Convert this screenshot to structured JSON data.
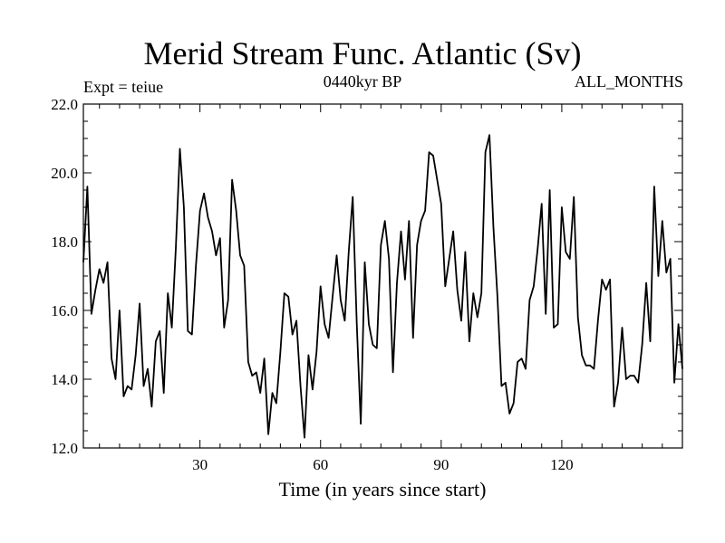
{
  "chart_data": {
    "type": "line",
    "title": "Merid Stream Func. Atlantic (Sv)",
    "subtitle_left": "Expt = teiue",
    "subtitle_center": "0440kyr BP",
    "subtitle_right": "ALL_MONTHS",
    "xlabel": "Time (in years since start)",
    "ylabel": "",
    "xlim": [
      1,
      150
    ],
    "ylim": [
      12.0,
      22.0
    ],
    "x_ticks": [
      30,
      60,
      90,
      120
    ],
    "x_tick_labels": [
      "30",
      "60",
      "90",
      "120"
    ],
    "y_ticks": [
      12,
      14,
      16,
      18,
      20,
      22
    ],
    "y_tick_labels": [
      "12.0",
      "14.0",
      "16.0",
      "18.0",
      "20.0",
      "22.0"
    ],
    "grid": false,
    "line_color": "#000000",
    "series": [
      {
        "x": [
          1,
          2,
          3,
          4,
          5,
          6,
          7,
          8,
          9,
          10,
          11,
          12,
          13,
          14,
          15,
          16,
          17,
          18,
          19,
          20,
          21,
          22,
          23,
          24,
          25,
          26,
          27,
          28,
          29,
          30,
          31,
          32,
          33,
          34,
          35,
          36,
          37,
          38,
          39,
          40,
          41,
          42,
          43,
          44,
          45,
          46,
          47,
          48,
          49,
          50,
          51,
          52,
          53,
          54,
          55,
          56,
          57,
          58,
          59,
          60,
          61,
          62,
          63,
          64,
          65,
          66,
          67,
          68,
          69,
          70,
          71,
          72,
          73,
          74,
          75,
          76,
          77,
          78,
          79,
          80,
          81,
          82,
          83,
          84,
          85,
          86,
          87,
          88,
          89,
          90,
          91,
          92,
          93,
          94,
          95,
          96,
          97,
          98,
          99,
          100,
          101,
          102,
          103,
          104,
          105,
          106,
          107,
          108,
          109,
          110,
          111,
          112,
          113,
          114,
          115,
          116,
          117,
          118,
          119,
          120,
          121,
          122,
          123,
          124,
          125,
          126,
          127,
          128,
          129,
          130,
          131,
          132,
          133,
          134,
          135,
          136,
          137,
          138,
          139,
          140,
          141,
          142,
          143,
          144,
          145,
          146,
          147,
          148,
          149,
          150
        ],
        "values": [
          17.4,
          19.6,
          15.9,
          16.6,
          17.2,
          16.8,
          17.4,
          14.6,
          14.0,
          16.0,
          13.5,
          13.8,
          13.7,
          14.7,
          16.2,
          13.8,
          14.3,
          13.2,
          15.1,
          15.4,
          13.6,
          16.5,
          15.5,
          17.8,
          20.7,
          19.0,
          15.4,
          15.3,
          17.3,
          18.9,
          19.4,
          18.7,
          18.3,
          17.6,
          18.1,
          15.5,
          16.3,
          19.8,
          18.9,
          17.6,
          17.3,
          14.5,
          14.1,
          14.2,
          13.6,
          14.6,
          12.4,
          13.6,
          13.3,
          14.8,
          16.5,
          16.4,
          15.3,
          15.7,
          13.8,
          12.3,
          14.7,
          13.7,
          14.8,
          16.7,
          15.6,
          15.2,
          16.4,
          17.6,
          16.3,
          15.7,
          17.7,
          19.3,
          15.6,
          12.7,
          17.4,
          15.6,
          15.0,
          14.9,
          17.9,
          18.6,
          17.5,
          14.2,
          16.8,
          18.3,
          16.9,
          18.6,
          15.2,
          17.9,
          18.6,
          18.9,
          20.6,
          20.5,
          19.8,
          19.1,
          16.7,
          17.5,
          18.3,
          16.6,
          15.7,
          17.7,
          15.1,
          16.5,
          15.8,
          16.5,
          20.6,
          21.1,
          18.4,
          16.4,
          13.8,
          13.9,
          13.0,
          13.3,
          14.5,
          14.6,
          14.3,
          16.3,
          16.7,
          17.8,
          19.1,
          15.9,
          19.5,
          15.5,
          15.6,
          19.0,
          17.7,
          17.5,
          19.3,
          15.8,
          14.7,
          14.4,
          14.4,
          14.3,
          15.7,
          16.9,
          16.6,
          16.9,
          13.2,
          13.9,
          15.5,
          14.0,
          14.1,
          14.1,
          13.9,
          15.0,
          16.8,
          15.1,
          19.6,
          17.0,
          18.6,
          17.1,
          17.5,
          13.9,
          15.6,
          14.3
        ]
      }
    ]
  }
}
